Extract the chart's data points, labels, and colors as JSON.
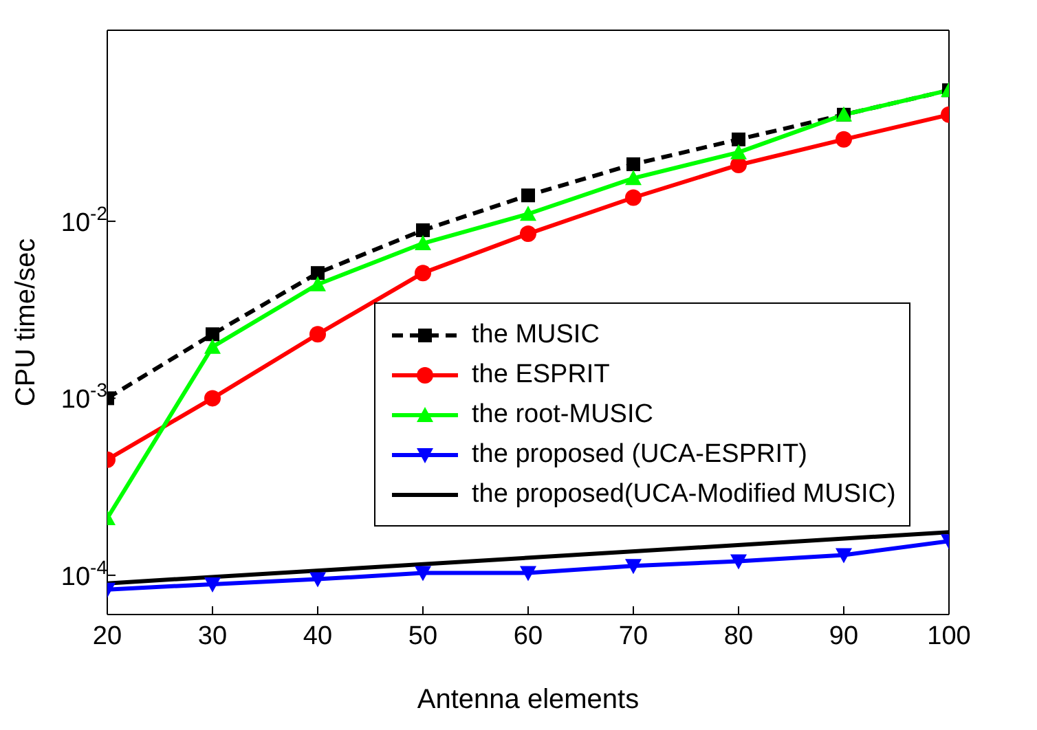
{
  "chart_data": {
    "type": "line",
    "xlabel": "Antenna elements",
    "ylabel": "CPU time/sec",
    "log": "y",
    "grid": false,
    "legend": "right",
    "x": [
      20,
      30,
      40,
      50,
      60,
      70,
      80,
      90,
      100
    ],
    "xlim": [
      20,
      100
    ],
    "xticks": [
      20,
      30,
      40,
      50,
      60,
      70,
      80,
      90,
      100
    ],
    "ylim": [
      6e-05,
      0.12
    ],
    "yticks": [
      {
        "value": 0.0001,
        "label": "10$^{-4}$"
      },
      {
        "value": 0.001,
        "label": "10$^{-3}$"
      },
      {
        "value": 0.01,
        "label": "10$^{-2}$"
      }
    ],
    "series": [
      {
        "name": "the MUSIC",
        "color": "#000000",
        "marker": "square",
        "line_style": "dashed",
        "values": [
          0.001,
          0.0023,
          0.0051,
          0.0089,
          0.014,
          0.021,
          0.029,
          0.04,
          0.055
        ]
      },
      {
        "name": "the ESPRIT",
        "color": "#ff0000",
        "marker": "circle",
        "line_style": "solid",
        "values": [
          0.00045,
          0.001,
          0.0023,
          0.0051,
          0.0085,
          0.0136,
          0.0208,
          0.029,
          0.04
        ]
      },
      {
        "name": "the root-MUSIC",
        "color": "#00ff00",
        "marker": "triangle",
        "line_style": "solid",
        "values": [
          0.00021,
          0.00195,
          0.0044,
          0.0075,
          0.011,
          0.0175,
          0.0245,
          0.04,
          0.055
        ]
      },
      {
        "name": "the proposed (UCA-ESPRIT)",
        "color": "#0000ff",
        "marker": "triangle-down",
        "line_style": "solid",
        "values": [
          8.3e-05,
          8.9e-05,
          9.5e-05,
          0.000103,
          0.000103,
          0.000113,
          0.00012,
          0.00013,
          0.000156
        ]
      },
      {
        "name": "the proposed(UCA-Modified MUSIC)",
        "color": "#000000",
        "marker": "none",
        "line_style": "solid",
        "x": [
          20,
          100
        ],
        "values": [
          9e-05,
          0.000175
        ]
      }
    ]
  }
}
